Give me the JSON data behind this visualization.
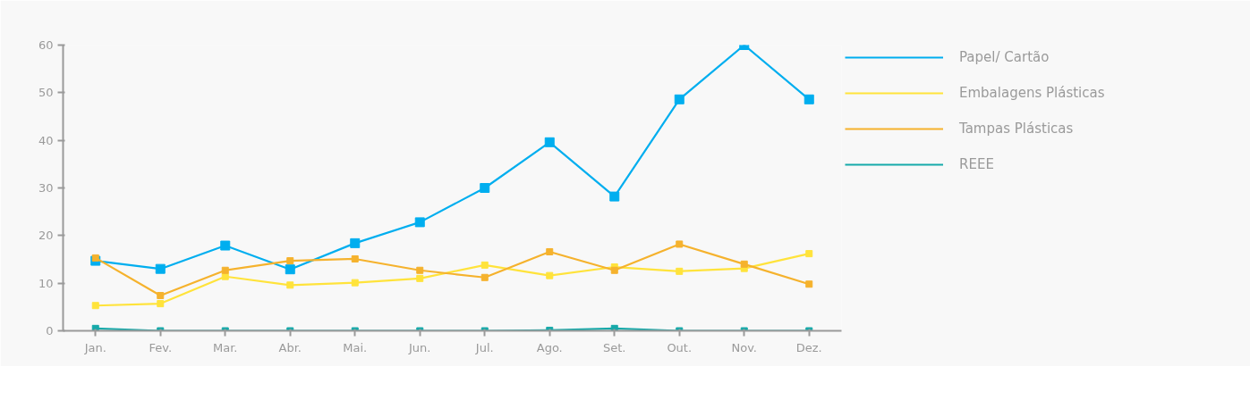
{
  "chart_data": {
    "type": "line",
    "categories": [
      "Jan.",
      "Fev.",
      "Mar.",
      "Abr.",
      "Mai.",
      "Jun.",
      "Jul.",
      "Ago.",
      "Set.",
      "Out.",
      "Nov.",
      "Dez."
    ],
    "ylim": [
      0,
      60
    ],
    "yticks": [
      0,
      10,
      20,
      30,
      40,
      50,
      60
    ],
    "grid": false,
    "legend": "right",
    "marker": "square",
    "line_style": "solid",
    "series": [
      {
        "name": "Papel/ Cartão",
        "color": "#00aeef",
        "values": [
          14.7,
          13,
          17.9,
          12.9,
          18.4,
          22.8,
          30,
          39.6,
          28.2,
          48.6,
          60,
          48.6
        ]
      },
      {
        "name": "Embalagens Plásticas",
        "color": "#ffe33b",
        "values": [
          5.3,
          5.7,
          11.4,
          9.6,
          10.1,
          11,
          13.8,
          11.6,
          13.4,
          12.5,
          13.1,
          16.2
        ]
      },
      {
        "name": "Tampas Plásticas",
        "color": "#f5b22d",
        "values": [
          15.3,
          7.4,
          12.7,
          14.7,
          15.1,
          12.7,
          11.2,
          16.6,
          12.7,
          18.2,
          14,
          9.8
        ]
      },
      {
        "name": "REEE",
        "color": "#16a9a9",
        "values": [
          0.5,
          0,
          0,
          0,
          0,
          0,
          0,
          0.1,
          0.5,
          0,
          0,
          0
        ]
      }
    ]
  }
}
